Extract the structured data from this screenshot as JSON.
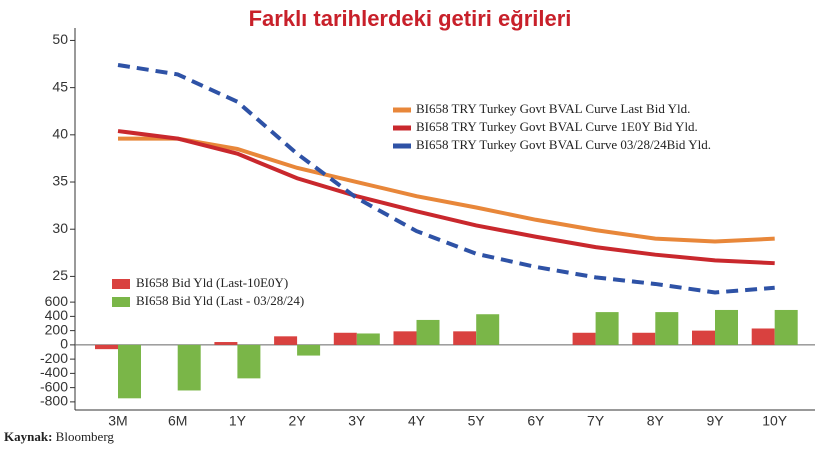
{
  "chart_data": [
    {
      "type": "line",
      "title": "Farklı tarihlerdeki getiri eğrileri",
      "categories": [
        "3M",
        "6M",
        "1Y",
        "2Y",
        "3Y",
        "4Y",
        "5Y",
        "6Y",
        "7Y",
        "8Y",
        "9Y",
        "10Y"
      ],
      "series": [
        {
          "name": "BI658 TRY Turkey Govt BVAL Curve Last Bid Yld.",
          "color": "#e8873a",
          "dashed": false,
          "values": [
            39.6,
            39.6,
            38.5,
            36.5,
            35.0,
            33.5,
            32.3,
            31.0,
            29.9,
            29.0,
            28.7,
            29.0
          ]
        },
        {
          "name": "BI658 TRY Turkey Govt BVAL Curve 1E0Y Bid Yld.",
          "color": "#c9282d",
          "dashed": false,
          "values": [
            40.4,
            39.6,
            38.0,
            35.4,
            33.5,
            31.9,
            30.4,
            29.2,
            28.1,
            27.3,
            26.7,
            26.4
          ]
        },
        {
          "name": "BI658 TRY Turkey Govt BVAL Curve 03/28/24Bid Yld.",
          "color": "#2e52a6",
          "dashed": true,
          "values": [
            47.4,
            46.4,
            43.5,
            38.0,
            33.3,
            29.8,
            27.4,
            26.0,
            24.9,
            24.2,
            23.3,
            23.8
          ]
        }
      ],
      "ylim": [
        22.5,
        51
      ],
      "yticks": [
        25,
        30,
        35,
        40,
        45,
        50
      ]
    },
    {
      "type": "bar",
      "categories": [
        "3M",
        "6M",
        "1Y",
        "2Y",
        "3Y",
        "4Y",
        "5Y",
        "6Y",
        "7Y",
        "8Y",
        "9Y",
        "10Y"
      ],
      "series": [
        {
          "name": "BI658 Bid Yld (Last-10E0Y)",
          "color": "#d9413f",
          "values": [
            -60,
            null,
            40,
            120,
            170,
            190,
            190,
            null,
            170,
            170,
            200,
            230
          ]
        },
        {
          "name": "BI658 Bid Yld (Last - 03/28/24)",
          "color": "#7ab648",
          "values": [
            -750,
            -640,
            -470,
            -150,
            160,
            350,
            430,
            null,
            460,
            460,
            490,
            490
          ]
        }
      ],
      "ylim": [
        -900,
        700
      ],
      "yticks": [
        600,
        400,
        200,
        0,
        -200,
        -400,
        -600,
        -800
      ]
    }
  ],
  "source_label": "Kaynak:",
  "source": "Bloomberg"
}
